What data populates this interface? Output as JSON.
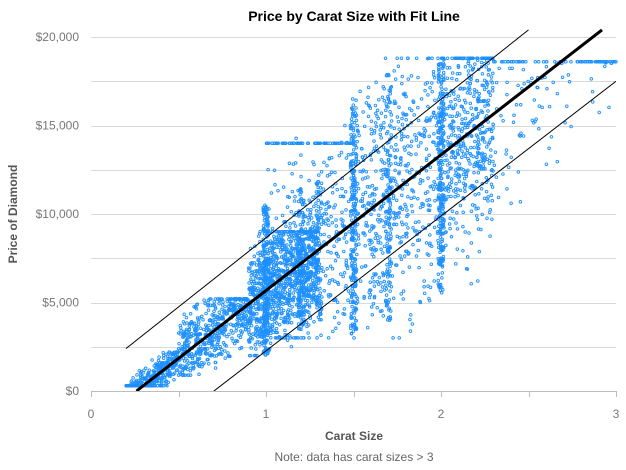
{
  "chart_data": {
    "type": "scatter",
    "title": "Price by Carat Size with Fit Line",
    "xlabel": "Carat Size",
    "ylabel": "Price of Diamond",
    "note": "Note: data has carat sizes > 3",
    "xlim": [
      0,
      3
    ],
    "ylim": [
      0,
      20000
    ],
    "x_ticks": [
      0,
      0.5,
      1,
      1.5,
      2,
      2.5,
      3
    ],
    "x_tick_labels": [
      "0",
      "",
      "1",
      "",
      "2",
      "",
      "3"
    ],
    "y_ticks": [
      0,
      5000,
      10000,
      15000,
      20000
    ],
    "y_tick_labels": [
      "$0",
      "$5,000",
      "$10,000",
      "$15,000",
      "$20,000"
    ],
    "y_minor_ticks": [
      2500,
      7500,
      12500,
      17500
    ],
    "grid": true,
    "legend": "none",
    "colors": {
      "points": "#1e90ff",
      "fit_line": "#000000",
      "band_lines": "#000000"
    },
    "fit_line": {
      "x": [
        0.26,
        2.92
      ],
      "y": [
        0,
        20400
      ]
    },
    "upper_band": {
      "x": [
        0.2,
        2.5
      ],
      "y": [
        2400,
        20400
      ]
    },
    "lower_band": {
      "x": [
        0.65,
        3.0
      ],
      "y": [
        -400,
        17500
      ]
    },
    "point_clusters": [
      {
        "name": "small",
        "x_range": [
          0.2,
          0.5
        ],
        "y_range": [
          300,
          2200
        ],
        "count": 380
      },
      {
        "name": "mid",
        "x_range": [
          0.5,
          0.9
        ],
        "y_range": [
          900,
          5200
        ],
        "count": 520
      },
      {
        "name": "one-carat-low",
        "x_range": [
          0.9,
          1.3
        ],
        "y_range": [
          2000,
          9000
        ],
        "count": 900
      },
      {
        "name": "one-carat-high",
        "x_range": [
          1.0,
          1.5
        ],
        "y_range": [
          3000,
          15000
        ],
        "count": 420
      },
      {
        "name": "one-carat-top",
        "x_range": [
          1.0,
          1.5
        ],
        "y_range": [
          14000,
          18800
        ],
        "count": 80
      },
      {
        "name": "one-half",
        "x_range": [
          1.5,
          2.0
        ],
        "y_range": [
          3000,
          18800
        ],
        "count": 560
      },
      {
        "name": "two-carat",
        "x_range": [
          2.0,
          2.3
        ],
        "y_range": [
          5500,
          18800
        ],
        "count": 520
      },
      {
        "name": "large",
        "x_range": [
          2.3,
          3.0
        ],
        "y_range": [
          6000,
          18600
        ],
        "count": 140
      }
    ],
    "point_stripes": [
      {
        "x": 1.0,
        "y_range": [
          2000,
          10500
        ],
        "count": 220
      },
      {
        "x": 1.5,
        "y_range": [
          3000,
          16500
        ],
        "count": 200
      },
      {
        "x": 1.7,
        "y_range": [
          4000,
          18000
        ],
        "count": 120
      },
      {
        "x": 2.0,
        "y_range": [
          5500,
          18800
        ],
        "count": 220
      },
      {
        "x": 1.2,
        "y_range": [
          3500,
          11500
        ],
        "count": 120
      },
      {
        "x": 1.3,
        "y_range": [
          4000,
          12000
        ],
        "count": 80
      }
    ]
  }
}
